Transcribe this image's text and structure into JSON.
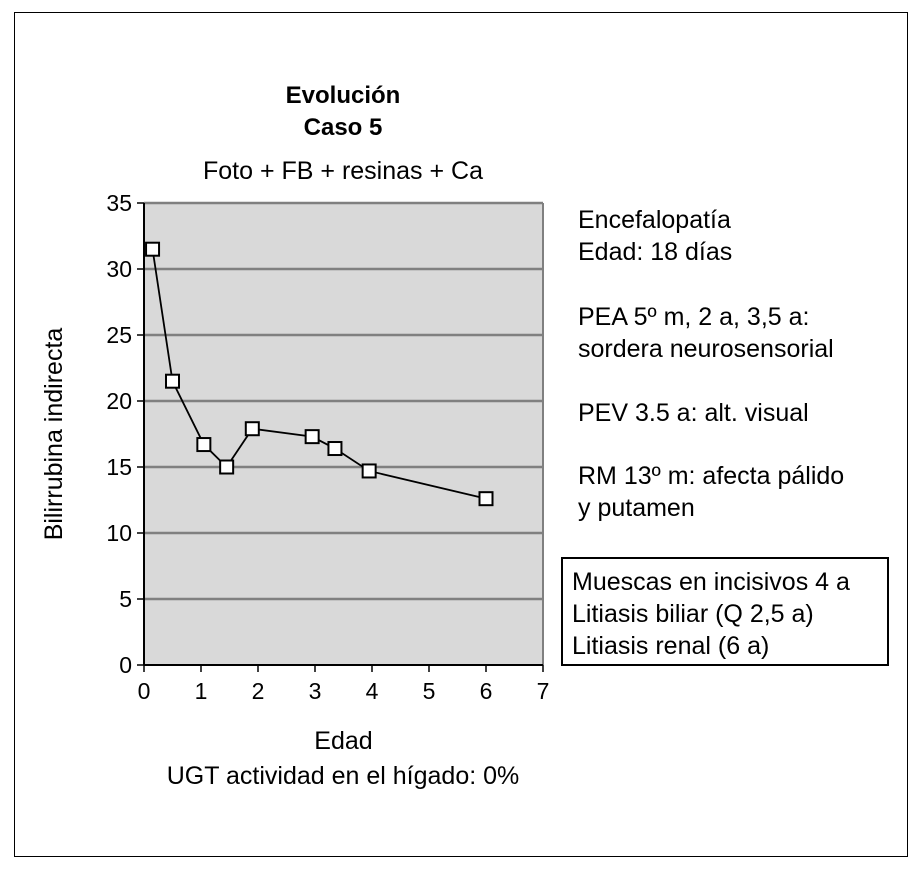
{
  "chart_data": {
    "type": "line",
    "title": "Evolución",
    "subtitle_line": "Caso 5",
    "treatment": "Foto + FB + resinas + Ca",
    "xlabel": "Edad",
    "ylabel": "Bilirrubina indirecta",
    "xlim": [
      0,
      7
    ],
    "ylim": [
      0,
      35
    ],
    "xticks": [
      "0",
      "1",
      "2",
      "3",
      "4",
      "5",
      "6",
      "7"
    ],
    "yticks": [
      "0",
      "5",
      "10",
      "15",
      "20",
      "25",
      "30",
      "35"
    ],
    "grid": "horizontal",
    "background": "#d9d9d9",
    "series": [
      {
        "name": "Bilirrubina indirecta",
        "x": [
          0.15,
          0.5,
          1.05,
          1.45,
          1.9,
          2.95,
          3.35,
          3.95,
          6.0
        ],
        "y": [
          31.5,
          21.5,
          16.7,
          15.0,
          17.9,
          17.3,
          16.4,
          14.7,
          12.6
        ]
      }
    ],
    "caption": "UGT actividad en el hígado: 0%"
  },
  "notes": {
    "encefalopatia": [
      "Encefalopatía",
      "Edad: 18 días"
    ],
    "pea": [
      "PEA 5º m, 2 a, 3,5 a:",
      "sordera neurosensorial"
    ],
    "pev": "PEV 3.5 a: alt. visual",
    "rm": [
      "RM 13º m: afecta pálido",
      "y putamen"
    ]
  },
  "boxed_notes": [
    "Muescas en incisivos 4 a",
    "Litiasis biliar (Q 2,5 a)",
    "Litiasis renal (6 a)"
  ]
}
